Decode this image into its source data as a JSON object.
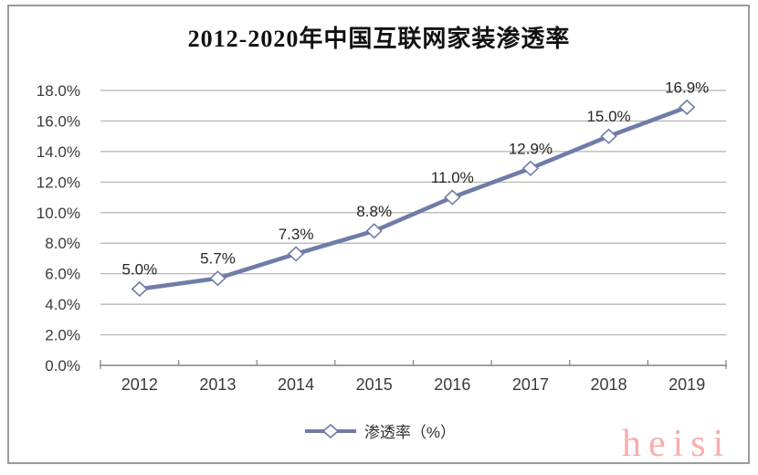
{
  "chart_data": {
    "type": "line",
    "title": "2012-2020年中国互联网家装渗透率",
    "categories": [
      "2012",
      "2013",
      "2014",
      "2015",
      "2016",
      "2017",
      "2018",
      "2019"
    ],
    "series": [
      {
        "name": "渗透率（%）",
        "values": [
          5.0,
          5.7,
          7.3,
          8.8,
          11.0,
          12.9,
          15.0,
          16.9
        ]
      }
    ],
    "data_labels": [
      "5.0%",
      "5.7%",
      "7.3%",
      "8.8%",
      "11.0%",
      "12.9%",
      "15.0%",
      "16.9%"
    ],
    "y_ticks": [
      "18.0%",
      "16.0%",
      "14.0%",
      "12.0%",
      "10.0%",
      "8.0%",
      "6.0%",
      "4.0%",
      "2.0%",
      "0.0%"
    ],
    "ylim": [
      0,
      18
    ],
    "y_step": 2,
    "grid": true,
    "legend_position": "bottom",
    "colors": {
      "line": "#6e7da7",
      "marker_fill": "#ffffff",
      "grid": "#b1b1b1",
      "axis": "#828282",
      "tick_text": "#3a3a3a",
      "title": "#111111",
      "watermark": "#f8aeae"
    }
  },
  "legend": {
    "label": "渗透率（%）"
  },
  "watermark": "heisi"
}
